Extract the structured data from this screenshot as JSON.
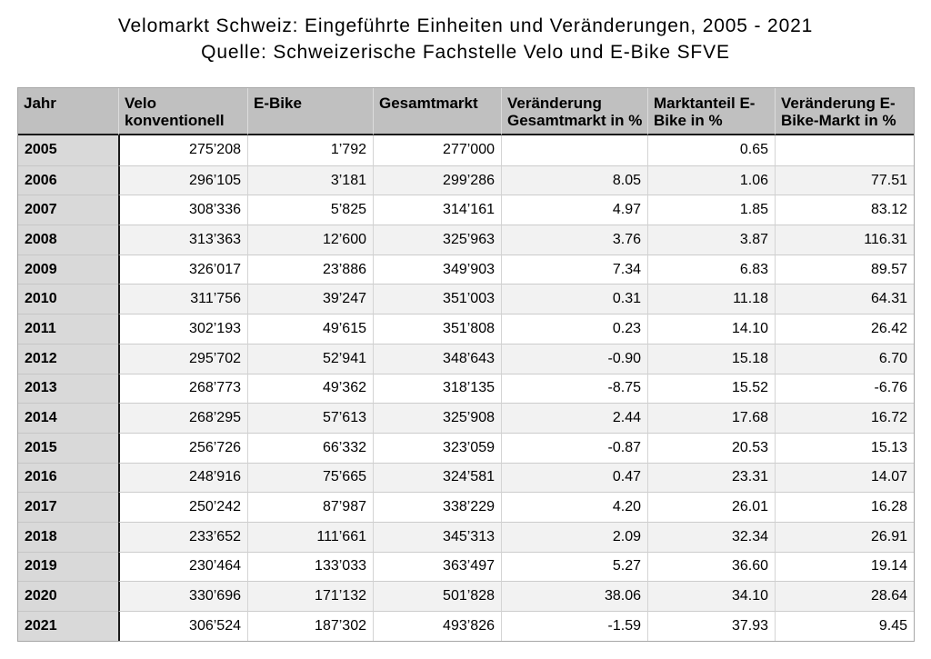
{
  "title": "Velomarkt Schweiz: Eingeführte Einheiten und Veränderungen, 2005 - 2021",
  "subtitle": "Quelle: Schweizerische Fachstelle Velo und E-Bike SFVE",
  "colors": {
    "header_bg": "#c0c0c0",
    "year_column_bg": "#d9d9d9",
    "row_bg": "#ffffff",
    "row_alt_bg": "#f2f2f2",
    "grid_border": "#cccccc",
    "dark_border": "#151515",
    "text": "#000000"
  },
  "chart_data": {
    "type": "table",
    "title": "Velomarkt Schweiz: Eingeführte Einheiten und Veränderungen, 2005 - 2021",
    "source": "Quelle: Schweizerische Fachstelle Velo und E-Bike SFVE",
    "columns": [
      "Jahr",
      "Velo konventionell",
      "E-Bike",
      "Gesamtmarkt",
      "Veränderung Gesamtmarkt in %",
      "Marktanteil E-Bike in %",
      "Veränderung E-Bike-Markt in %"
    ],
    "rows": [
      [
        "2005",
        "275’208",
        "1’792",
        "277’000",
        "",
        "0.65",
        ""
      ],
      [
        "2006",
        "296’105",
        "3’181",
        "299’286",
        "8.05",
        "1.06",
        "77.51"
      ],
      [
        "2007",
        "308’336",
        "5’825",
        "314’161",
        "4.97",
        "1.85",
        "83.12"
      ],
      [
        "2008",
        "313’363",
        "12’600",
        "325’963",
        "3.76",
        "3.87",
        "116.31"
      ],
      [
        "2009",
        "326’017",
        "23’886",
        "349’903",
        "7.34",
        "6.83",
        "89.57"
      ],
      [
        "2010",
        "311’756",
        "39’247",
        "351’003",
        "0.31",
        "11.18",
        "64.31"
      ],
      [
        "2011",
        "302’193",
        "49’615",
        "351’808",
        "0.23",
        "14.10",
        "26.42"
      ],
      [
        "2012",
        "295’702",
        "52’941",
        "348’643",
        "-0.90",
        "15.18",
        "6.70"
      ],
      [
        "2013",
        "268’773",
        "49’362",
        "318’135",
        "-8.75",
        "15.52",
        "-6.76"
      ],
      [
        "2014",
        "268’295",
        "57’613",
        "325’908",
        "2.44",
        "17.68",
        "16.72"
      ],
      [
        "2015",
        "256’726",
        "66’332",
        "323’059",
        "-0.87",
        "20.53",
        "15.13"
      ],
      [
        "2016",
        "248’916",
        "75’665",
        "324’581",
        "0.47",
        "23.31",
        "14.07"
      ],
      [
        "2017",
        "250’242",
        "87’987",
        "338’229",
        "4.20",
        "26.01",
        "16.28"
      ],
      [
        "2018",
        "233’652",
        "111’661",
        "345’313",
        "2.09",
        "32.34",
        "26.91"
      ],
      [
        "2019",
        "230’464",
        "133’033",
        "363’497",
        "5.27",
        "36.60",
        "19.14"
      ],
      [
        "2020",
        "330’696",
        "171’132",
        "501’828",
        "38.06",
        "34.10",
        "28.64"
      ],
      [
        "2021",
        "306’524",
        "187’302",
        "493’826",
        "-1.59",
        "37.93",
        "9.45"
      ]
    ]
  }
}
